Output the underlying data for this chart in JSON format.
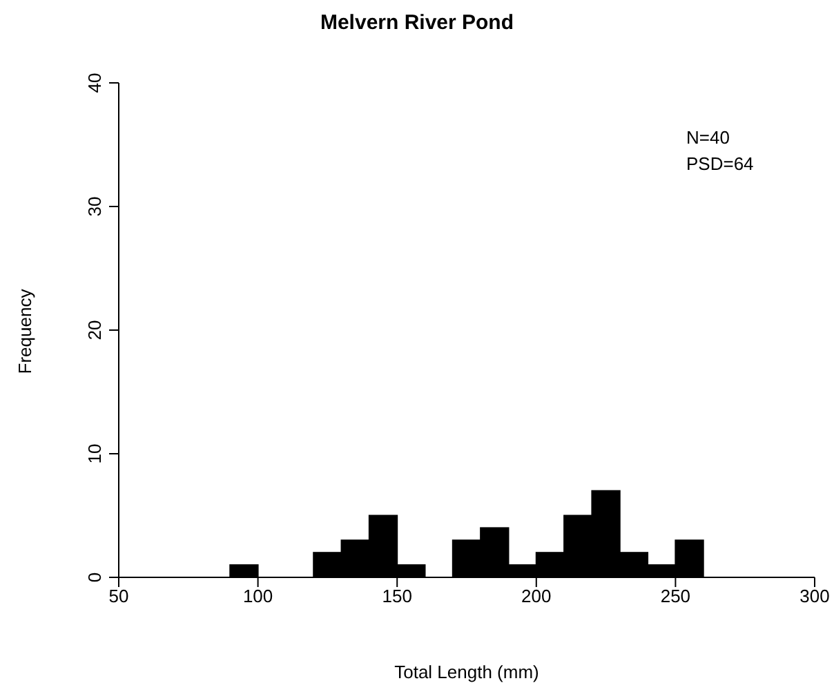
{
  "chart_data": {
    "type": "histogram",
    "title": "Melvern River Pond",
    "xlabel": "Total Length (mm)",
    "ylabel": "Frequency",
    "bins": [
      90,
      100,
      110,
      120,
      130,
      140,
      150,
      160,
      170,
      180,
      190,
      200,
      210,
      220,
      230,
      240,
      250,
      260
    ],
    "values": [
      1,
      0,
      0,
      2,
      3,
      5,
      1,
      0,
      3,
      4,
      1,
      2,
      5,
      7,
      2,
      1,
      3
    ],
    "color": "#000000",
    "xlim": [
      50,
      300
    ],
    "xticks": [
      50,
      100,
      150,
      200,
      250,
      300
    ],
    "ylim": [
      0,
      40
    ],
    "yticks": [
      0,
      10,
      20,
      30,
      40
    ],
    "grid": false,
    "annotations": [
      "N=40",
      "PSD=64"
    ]
  }
}
